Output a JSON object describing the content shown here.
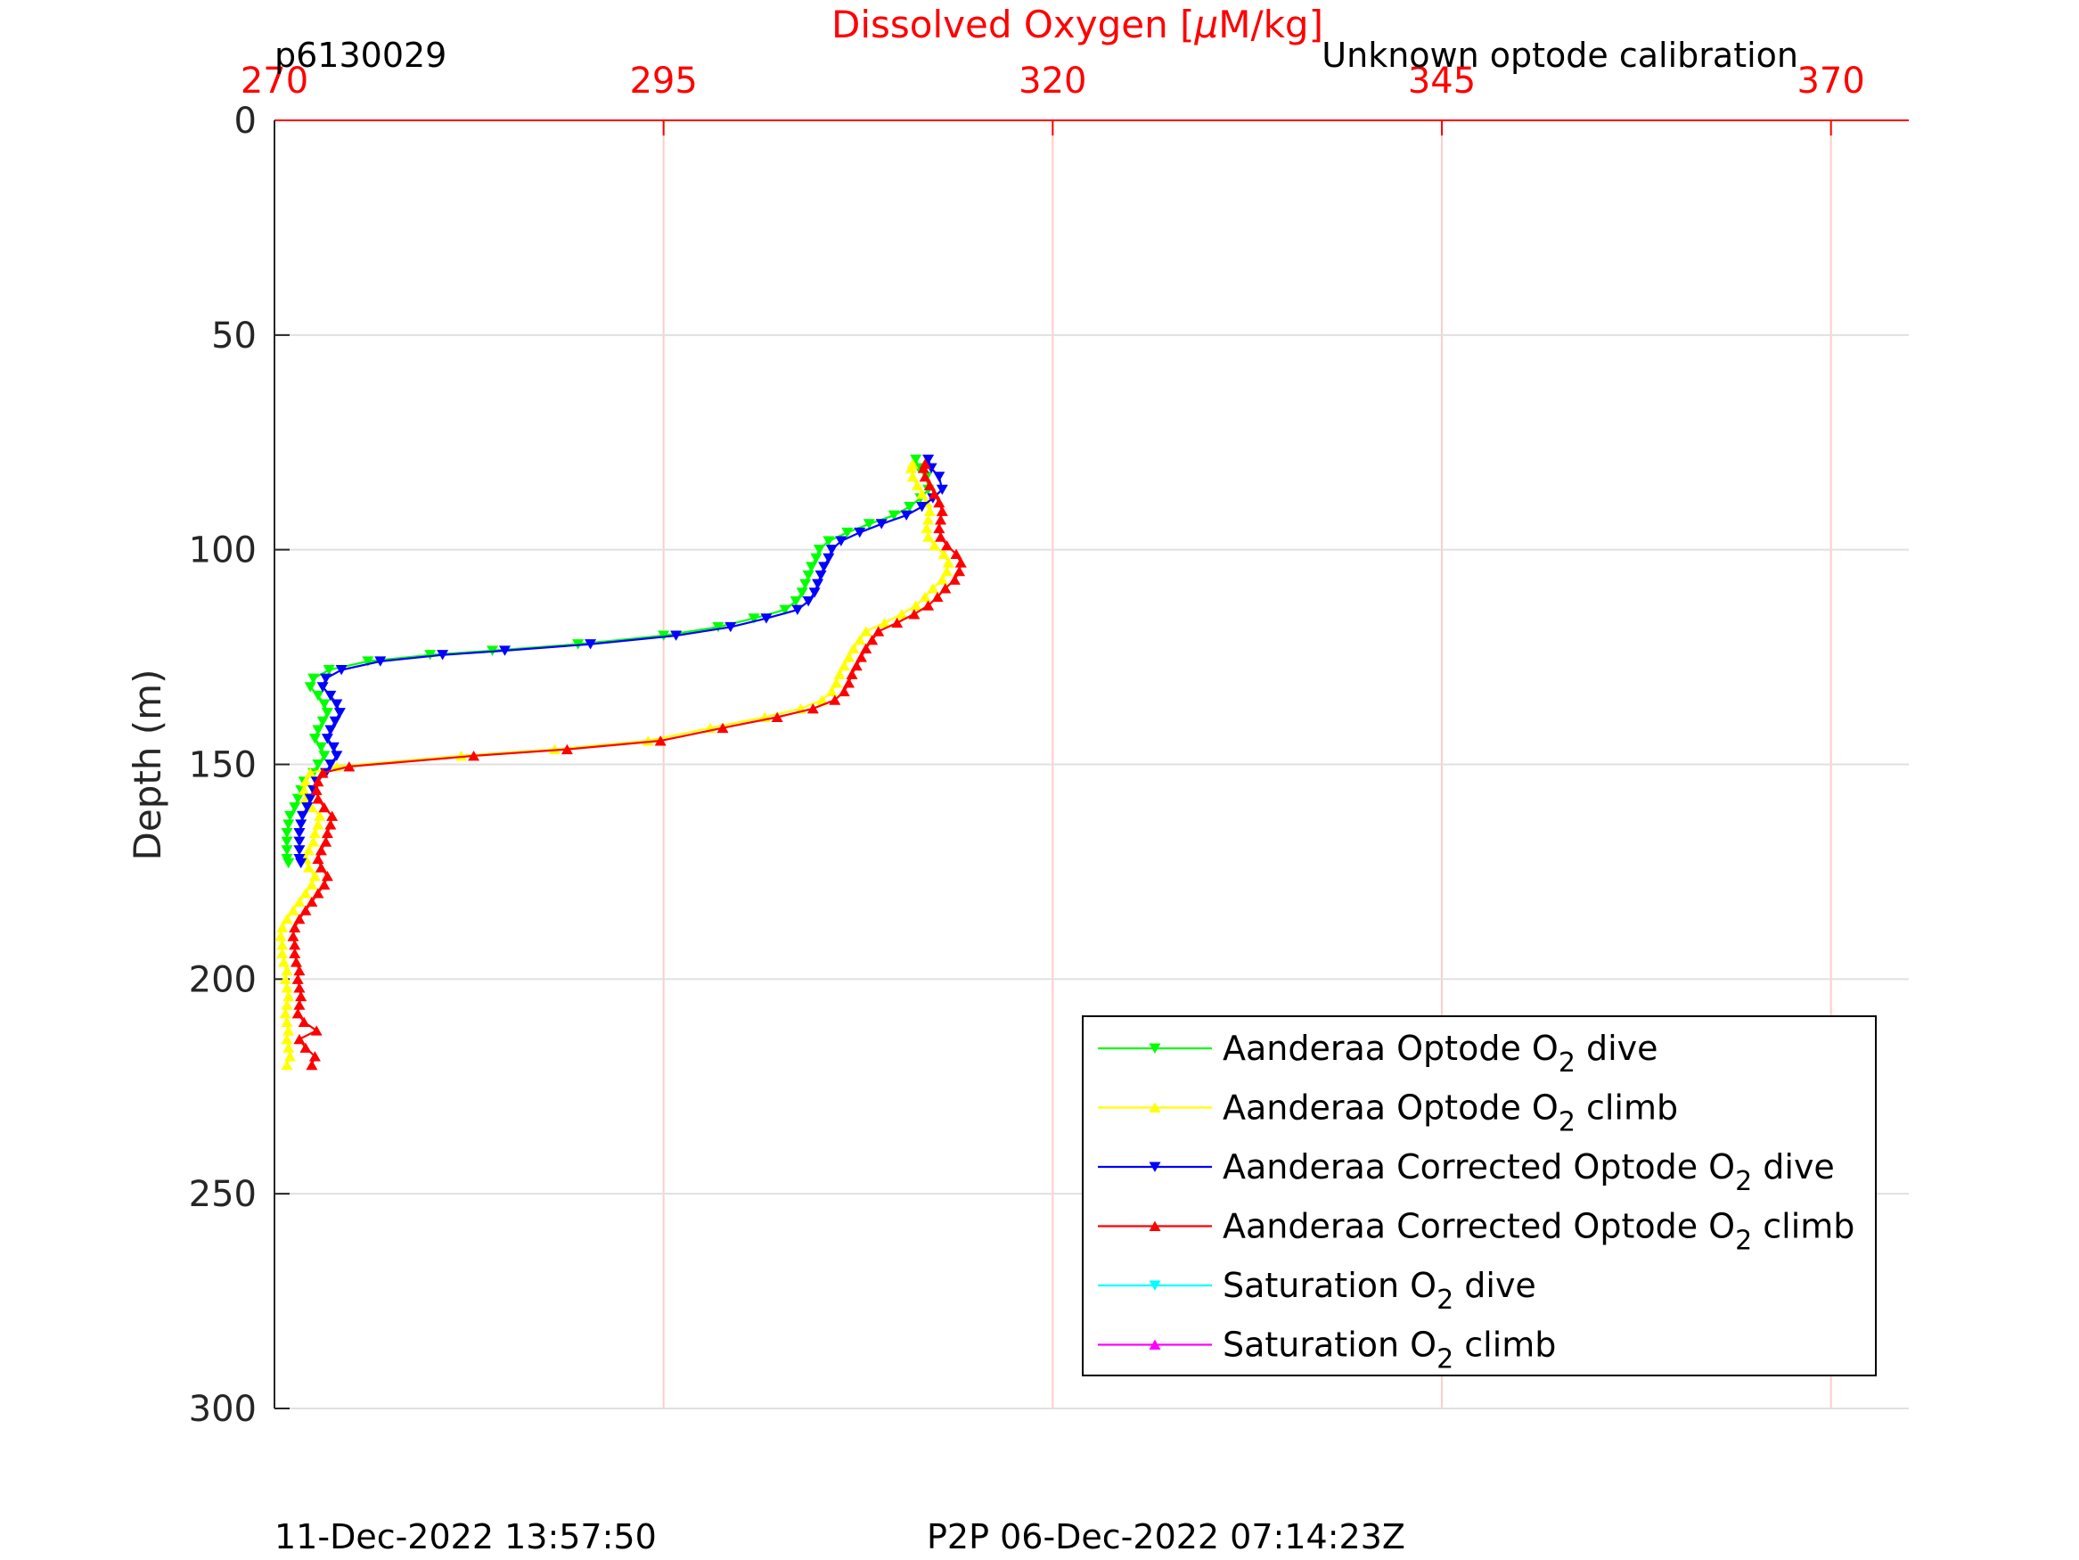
{
  "header": {
    "left_label": "p6130029",
    "right_label": "Unknown optode calibration"
  },
  "footer": {
    "left_text": "11-Dec-2022 13:57:50",
    "right_text": "P2P 06-Dec-2022 07:14:23Z"
  },
  "colors": {
    "top_axis": "#ff0000",
    "grid_x": "#ffcccc",
    "grid_y": "#e0e0e0",
    "legend_border": "#000000"
  },
  "chart_data": {
    "type": "line",
    "title": "",
    "x_axis": {
      "label_main": "Dissolved Oxygen [",
      "label_mu": "μ",
      "label_unit": "M/kg]",
      "position": "top",
      "range": [
        270,
        375
      ],
      "ticks": [
        270,
        295,
        320,
        345,
        370
      ],
      "tick_labels": [
        "270",
        "295",
        "320",
        "345",
        "370"
      ],
      "grid": true
    },
    "y_axis": {
      "label": "Depth (m)",
      "range": [
        0,
        300
      ],
      "reversed": true,
      "ticks": [
        0,
        50,
        100,
        150,
        200,
        250,
        300
      ],
      "tick_labels": [
        "0",
        "50",
        "100",
        "150",
        "200",
        "250",
        "300"
      ],
      "grid": true
    },
    "legend": {
      "placement": "bottom-right",
      "entries": [
        {
          "pre": "Aanderaa Optode O",
          "sub": "2",
          "post": " dive",
          "color": "#00ff00",
          "marker": "down"
        },
        {
          "pre": "Aanderaa Optode O",
          "sub": "2",
          "post": " climb",
          "color": "#ffff00",
          "marker": "up"
        },
        {
          "pre": "Aanderaa Corrected Optode O",
          "sub": "2",
          "post": " dive",
          "color": "#0000ff",
          "marker": "down"
        },
        {
          "pre": "Aanderaa Corrected Optode O",
          "sub": "2",
          "post": " climb",
          "color": "#ff0000",
          "marker": "up"
        },
        {
          "pre": "Saturation O",
          "sub": "2",
          "post": " dive",
          "color": "#00ffff",
          "marker": "down"
        },
        {
          "pre": "Saturation O",
          "sub": "2",
          "post": " climb",
          "color": "#ff00ff",
          "marker": "up"
        }
      ]
    },
    "series": [
      {
        "name": "Aanderaa Optode O2 dive",
        "color": "#00ff00",
        "marker": "down",
        "points": [
          [
            311.2,
            79
          ],
          [
            311.4,
            81
          ],
          [
            311.9,
            83
          ],
          [
            312.0,
            86
          ],
          [
            311.5,
            88
          ],
          [
            310.8,
            90
          ],
          [
            309.8,
            92
          ],
          [
            308.2,
            94
          ],
          [
            306.8,
            96
          ],
          [
            305.6,
            98
          ],
          [
            305.0,
            100
          ],
          [
            304.8,
            102
          ],
          [
            304.5,
            104
          ],
          [
            304.3,
            106
          ],
          [
            304.1,
            108
          ],
          [
            303.9,
            110
          ],
          [
            303.5,
            112
          ],
          [
            302.8,
            114
          ],
          [
            300.8,
            116
          ],
          [
            298.5,
            118
          ],
          [
            295.0,
            120
          ],
          [
            289.5,
            122
          ],
          [
            284.0,
            123.5
          ],
          [
            280.0,
            124.5
          ],
          [
            276.0,
            126
          ],
          [
            273.5,
            128
          ],
          [
            272.5,
            130
          ],
          [
            272.3,
            132
          ],
          [
            272.8,
            134
          ],
          [
            273.2,
            136
          ],
          [
            273.4,
            138
          ],
          [
            273.1,
            140
          ],
          [
            272.8,
            142
          ],
          [
            272.6,
            144
          ],
          [
            273.0,
            146
          ],
          [
            273.2,
            148
          ],
          [
            272.8,
            150
          ],
          [
            272.5,
            152
          ],
          [
            271.9,
            154
          ],
          [
            271.7,
            156
          ],
          [
            271.5,
            158
          ],
          [
            271.3,
            160
          ],
          [
            271.0,
            162
          ],
          [
            270.9,
            164
          ],
          [
            270.8,
            166
          ],
          [
            270.8,
            168
          ],
          [
            270.8,
            170
          ],
          [
            270.8,
            172
          ],
          [
            270.9,
            173
          ]
        ]
      },
      {
        "name": "Aanderaa Optode O2 climb",
        "color": "#ffff00",
        "marker": "up",
        "points": [
          [
            270.8,
            220
          ],
          [
            271.0,
            218
          ],
          [
            270.9,
            216
          ],
          [
            270.8,
            214
          ],
          [
            270.9,
            212
          ],
          [
            270.8,
            210
          ],
          [
            270.7,
            208
          ],
          [
            270.8,
            206
          ],
          [
            270.9,
            204
          ],
          [
            270.8,
            202
          ],
          [
            270.7,
            200
          ],
          [
            270.8,
            198
          ],
          [
            270.6,
            196
          ],
          [
            270.5,
            194
          ],
          [
            270.5,
            192
          ],
          [
            270.4,
            190
          ],
          [
            270.5,
            188
          ],
          [
            270.8,
            186
          ],
          [
            271.2,
            184
          ],
          [
            271.6,
            182
          ],
          [
            272.0,
            180
          ],
          [
            272.4,
            178
          ],
          [
            272.6,
            176
          ],
          [
            272.2,
            174
          ],
          [
            272.0,
            172
          ],
          [
            272.2,
            170
          ],
          [
            272.5,
            168
          ],
          [
            272.6,
            166
          ],
          [
            272.8,
            164
          ],
          [
            272.9,
            162
          ],
          [
            272.4,
            160
          ],
          [
            272.0,
            158
          ],
          [
            271.9,
            156
          ],
          [
            272.0,
            154
          ],
          [
            272.3,
            152
          ],
          [
            274.0,
            150.5
          ],
          [
            282.0,
            148
          ],
          [
            288.0,
            146.5
          ],
          [
            294.0,
            144.5
          ],
          [
            298.0,
            141.5
          ],
          [
            301.5,
            139
          ],
          [
            303.8,
            137
          ],
          [
            305.2,
            135
          ],
          [
            305.8,
            133
          ],
          [
            306.1,
            131
          ],
          [
            306.3,
            129
          ],
          [
            306.6,
            127
          ],
          [
            306.9,
            125
          ],
          [
            307.2,
            123
          ],
          [
            307.6,
            121
          ],
          [
            308.0,
            119
          ],
          [
            309.2,
            117
          ],
          [
            310.3,
            115
          ],
          [
            311.2,
            113
          ],
          [
            311.8,
            111
          ],
          [
            312.3,
            109
          ],
          [
            312.9,
            107
          ],
          [
            313.2,
            105
          ],
          [
            313.3,
            103
          ],
          [
            313.0,
            101
          ],
          [
            312.4,
            99
          ],
          [
            312.0,
            97
          ],
          [
            311.9,
            95
          ],
          [
            312.0,
            93
          ],
          [
            312.1,
            91
          ],
          [
            311.9,
            89
          ],
          [
            311.6,
            87
          ],
          [
            311.3,
            85
          ],
          [
            311.0,
            83
          ],
          [
            310.9,
            81
          ],
          [
            311.0,
            80
          ]
        ]
      },
      {
        "name": "Aanderaa Corrected Optode O2 dive",
        "color": "#0000ff",
        "marker": "down",
        "points": [
          [
            312.0,
            79
          ],
          [
            312.2,
            81
          ],
          [
            312.7,
            83
          ],
          [
            312.9,
            86
          ],
          [
            312.3,
            88
          ],
          [
            311.6,
            90
          ],
          [
            310.6,
            92
          ],
          [
            309.0,
            94
          ],
          [
            307.6,
            96
          ],
          [
            306.4,
            98
          ],
          [
            305.8,
            100
          ],
          [
            305.6,
            102
          ],
          [
            305.3,
            104
          ],
          [
            305.1,
            106
          ],
          [
            304.9,
            108
          ],
          [
            304.7,
            110
          ],
          [
            304.3,
            112
          ],
          [
            303.6,
            114
          ],
          [
            301.6,
            116
          ],
          [
            299.3,
            118
          ],
          [
            295.8,
            120
          ],
          [
            290.3,
            122
          ],
          [
            284.8,
            123.5
          ],
          [
            280.8,
            124.5
          ],
          [
            276.8,
            126
          ],
          [
            274.3,
            128
          ],
          [
            273.3,
            130
          ],
          [
            273.1,
            132
          ],
          [
            273.6,
            134
          ],
          [
            274.0,
            136
          ],
          [
            274.2,
            138
          ],
          [
            273.9,
            140
          ],
          [
            273.6,
            142
          ],
          [
            273.4,
            144
          ],
          [
            273.8,
            146
          ],
          [
            274.0,
            148
          ],
          [
            273.6,
            150
          ],
          [
            273.3,
            152
          ],
          [
            272.7,
            154
          ],
          [
            272.5,
            156
          ],
          [
            272.3,
            158
          ],
          [
            272.1,
            160
          ],
          [
            271.8,
            162
          ],
          [
            271.7,
            164
          ],
          [
            271.6,
            166
          ],
          [
            271.6,
            168
          ],
          [
            271.6,
            170
          ],
          [
            271.6,
            172
          ],
          [
            271.7,
            173
          ]
        ]
      },
      {
        "name": "Aanderaa Corrected Optode O2 climb",
        "color": "#ff0000",
        "marker": "up",
        "points": [
          [
            272.4,
            220
          ],
          [
            272.6,
            218
          ],
          [
            272.0,
            216
          ],
          [
            271.6,
            214
          ],
          [
            272.7,
            212
          ],
          [
            271.9,
            210
          ],
          [
            271.5,
            208
          ],
          [
            271.6,
            206
          ],
          [
            271.7,
            204
          ],
          [
            271.6,
            202
          ],
          [
            271.5,
            200
          ],
          [
            271.6,
            198
          ],
          [
            271.4,
            196
          ],
          [
            271.3,
            194
          ],
          [
            271.3,
            192
          ],
          [
            271.2,
            190
          ],
          [
            271.3,
            188
          ],
          [
            271.6,
            186
          ],
          [
            272.0,
            184
          ],
          [
            272.4,
            182
          ],
          [
            272.8,
            180
          ],
          [
            273.2,
            178
          ],
          [
            273.4,
            176
          ],
          [
            273.0,
            174
          ],
          [
            272.8,
            172
          ],
          [
            273.0,
            170
          ],
          [
            273.3,
            168
          ],
          [
            273.4,
            166
          ],
          [
            273.6,
            164
          ],
          [
            273.7,
            162
          ],
          [
            273.2,
            160
          ],
          [
            272.8,
            158
          ],
          [
            272.7,
            156
          ],
          [
            272.8,
            154
          ],
          [
            273.1,
            152
          ],
          [
            274.8,
            150.5
          ],
          [
            282.8,
            148
          ],
          [
            288.8,
            146.5
          ],
          [
            294.8,
            144.5
          ],
          [
            298.8,
            141.5
          ],
          [
            302.3,
            139
          ],
          [
            304.6,
            137
          ],
          [
            306.0,
            135
          ],
          [
            306.6,
            133
          ],
          [
            306.9,
            131
          ],
          [
            307.1,
            129
          ],
          [
            307.4,
            127
          ],
          [
            307.7,
            125
          ],
          [
            308.0,
            123
          ],
          [
            308.4,
            121
          ],
          [
            308.8,
            119
          ],
          [
            310.0,
            117
          ],
          [
            311.1,
            115
          ],
          [
            312.0,
            113
          ],
          [
            312.6,
            111
          ],
          [
            313.1,
            109
          ],
          [
            313.7,
            107
          ],
          [
            314.0,
            105
          ],
          [
            314.1,
            103
          ],
          [
            313.8,
            101
          ],
          [
            313.2,
            99
          ],
          [
            312.8,
            97
          ],
          [
            312.7,
            95
          ],
          [
            312.8,
            93
          ],
          [
            312.9,
            91
          ],
          [
            312.7,
            89
          ],
          [
            312.4,
            87
          ],
          [
            312.1,
            85
          ],
          [
            311.8,
            83
          ],
          [
            311.7,
            81
          ],
          [
            311.8,
            80
          ]
        ]
      }
    ]
  }
}
